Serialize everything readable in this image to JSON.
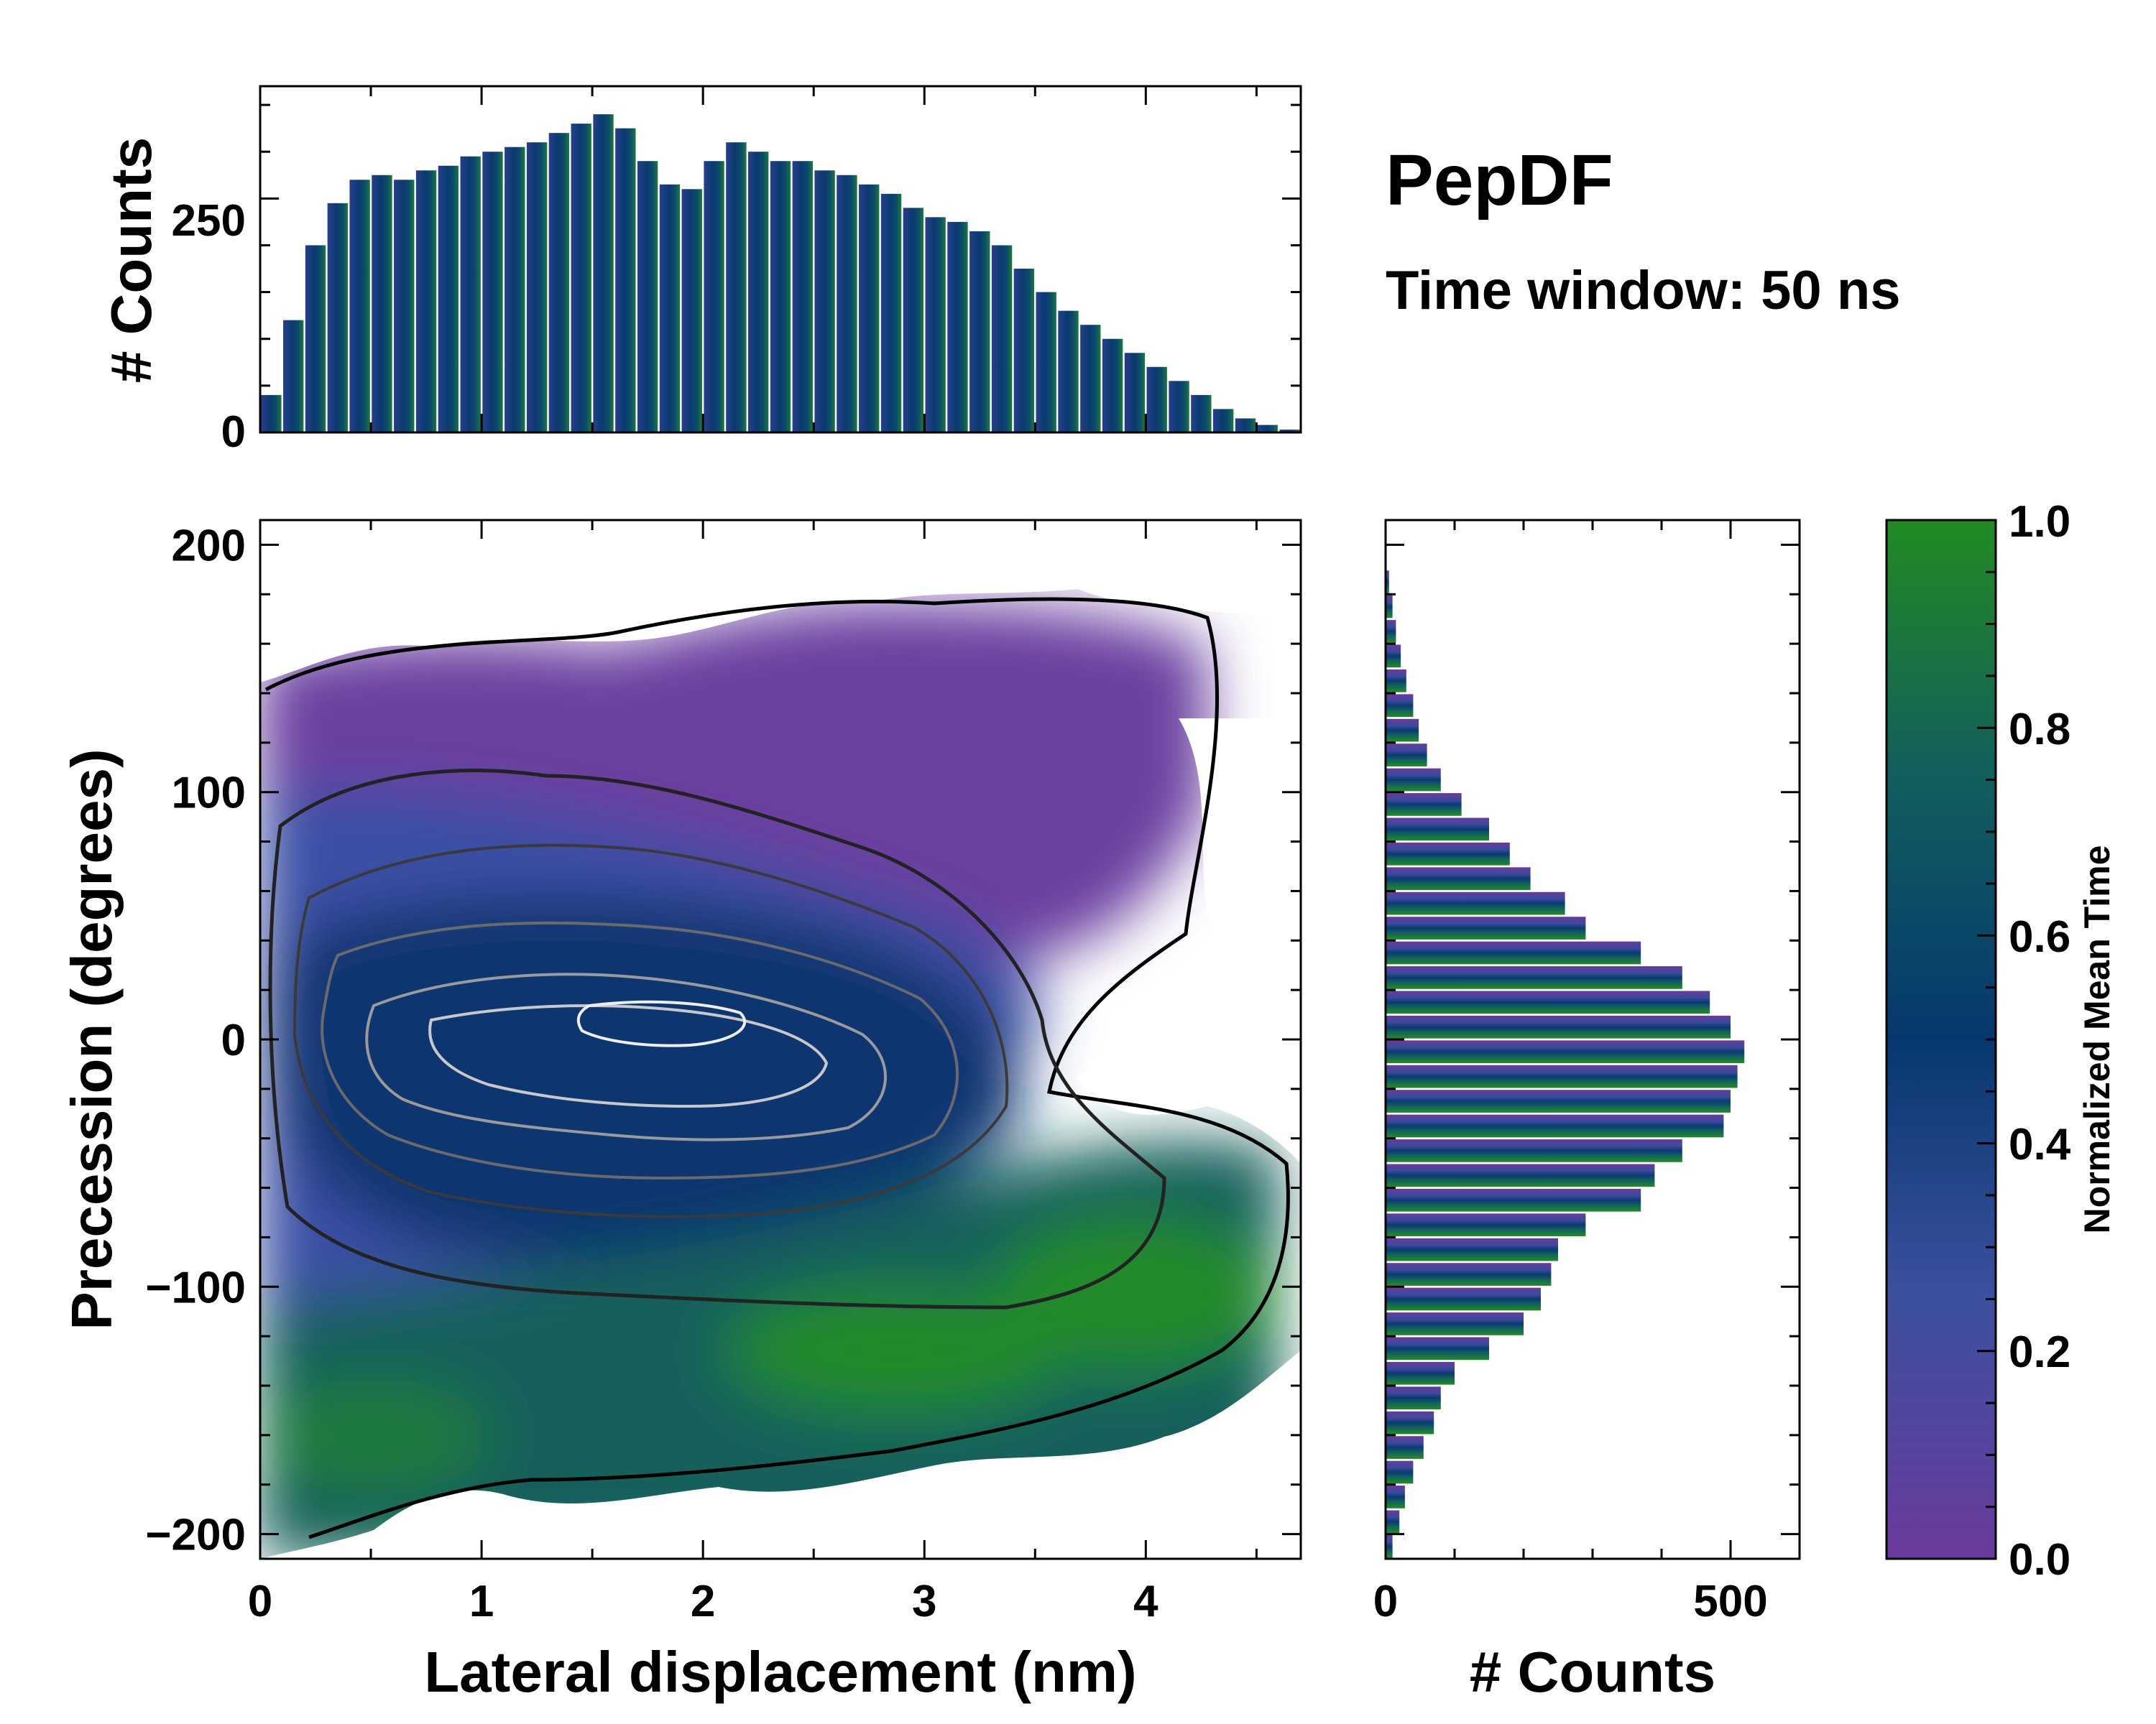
{
  "colors": {
    "cmap": [
      "#6a3a9c",
      "#3c50a0",
      "#06386e",
      "#115e5e",
      "#228b22"
    ],
    "frame": "#000000",
    "background": "#ffffff"
  },
  "chart_data": [
    {
      "type": "heatmap",
      "role": "joint-distribution",
      "xlabel": "Lateral displacement (nm)",
      "ylabel": "Precession (degrees)",
      "xlim": [
        0,
        4.7
      ],
      "ylim": [
        -210,
        210
      ],
      "xticks": [
        0,
        1,
        2,
        3,
        4
      ],
      "xtick_labels": [
        "0",
        "1",
        "2",
        "3",
        "4"
      ],
      "yticks": [
        200,
        100,
        0,
        -100,
        -200
      ],
      "ytick_labels": [
        "200",
        "100",
        "0",
        "−100",
        "−200"
      ],
      "color_encoding": "Normalized Mean Time",
      "note": "2D histogram colored by normalized mean time with density contours; purple region at top (early times), dark blue center, green lower-right (late times)"
    },
    {
      "type": "bar",
      "role": "top-marginal",
      "ylabel": "# Counts",
      "xlim": [
        0,
        4.7
      ],
      "ylim": [
        0,
        370
      ],
      "yticks": [
        0,
        250
      ],
      "ytick_labels": [
        "0",
        "250"
      ],
      "x": [
        0.05,
        0.15,
        0.25,
        0.35,
        0.45,
        0.55,
        0.65,
        0.75,
        0.85,
        0.95,
        1.05,
        1.15,
        1.25,
        1.35,
        1.45,
        1.55,
        1.65,
        1.75,
        1.85,
        1.95,
        2.05,
        2.15,
        2.25,
        2.35,
        2.45,
        2.55,
        2.65,
        2.75,
        2.85,
        2.95,
        3.05,
        3.15,
        3.25,
        3.35,
        3.45,
        3.55,
        3.65,
        3.75,
        3.85,
        3.95,
        4.05,
        4.15,
        4.25,
        4.35,
        4.45,
        4.55,
        4.65
      ],
      "values": [
        40,
        120,
        200,
        245,
        270,
        275,
        270,
        280,
        285,
        295,
        300,
        305,
        310,
        320,
        330,
        340,
        325,
        290,
        265,
        260,
        290,
        310,
        300,
        290,
        290,
        280,
        275,
        265,
        255,
        240,
        230,
        225,
        215,
        200,
        175,
        150,
        130,
        115,
        100,
        85,
        70,
        55,
        40,
        25,
        15,
        8,
        3
      ]
    },
    {
      "type": "bar",
      "role": "right-marginal",
      "orientation": "horizontal",
      "xlabel": "# Counts",
      "xlim": [
        0,
        600
      ],
      "ylim": [
        -210,
        210
      ],
      "xticks": [
        0,
        500
      ],
      "xtick_labels": [
        "0",
        "500"
      ],
      "y": [
        -205,
        -195,
        -185,
        -175,
        -165,
        -155,
        -145,
        -135,
        -125,
        -115,
        -105,
        -95,
        -85,
        -75,
        -65,
        -55,
        -45,
        -35,
        -25,
        -15,
        -5,
        5,
        15,
        25,
        35,
        45,
        55,
        65,
        75,
        85,
        95,
        105,
        115,
        125,
        135,
        145,
        155,
        165,
        175,
        185
      ],
      "values": [
        10,
        20,
        28,
        40,
        55,
        70,
        80,
        100,
        150,
        200,
        225,
        240,
        250,
        290,
        370,
        390,
        430,
        490,
        500,
        510,
        520,
        500,
        470,
        430,
        370,
        290,
        260,
        210,
        180,
        150,
        110,
        80,
        60,
        48,
        40,
        30,
        22,
        15,
        10,
        5
      ]
    },
    {
      "type": "colorbar",
      "label": "Normalized Mean Time",
      "range": [
        0.0,
        1.0
      ],
      "ticks": [
        0.0,
        0.2,
        0.4,
        0.6,
        0.8,
        1.0
      ],
      "tick_labels": [
        "0.0",
        "0.2",
        "0.4",
        "0.6",
        "0.8",
        "1.0"
      ]
    }
  ],
  "header": {
    "title": "PepDF",
    "subtitle": "Time window: 50 ns"
  }
}
